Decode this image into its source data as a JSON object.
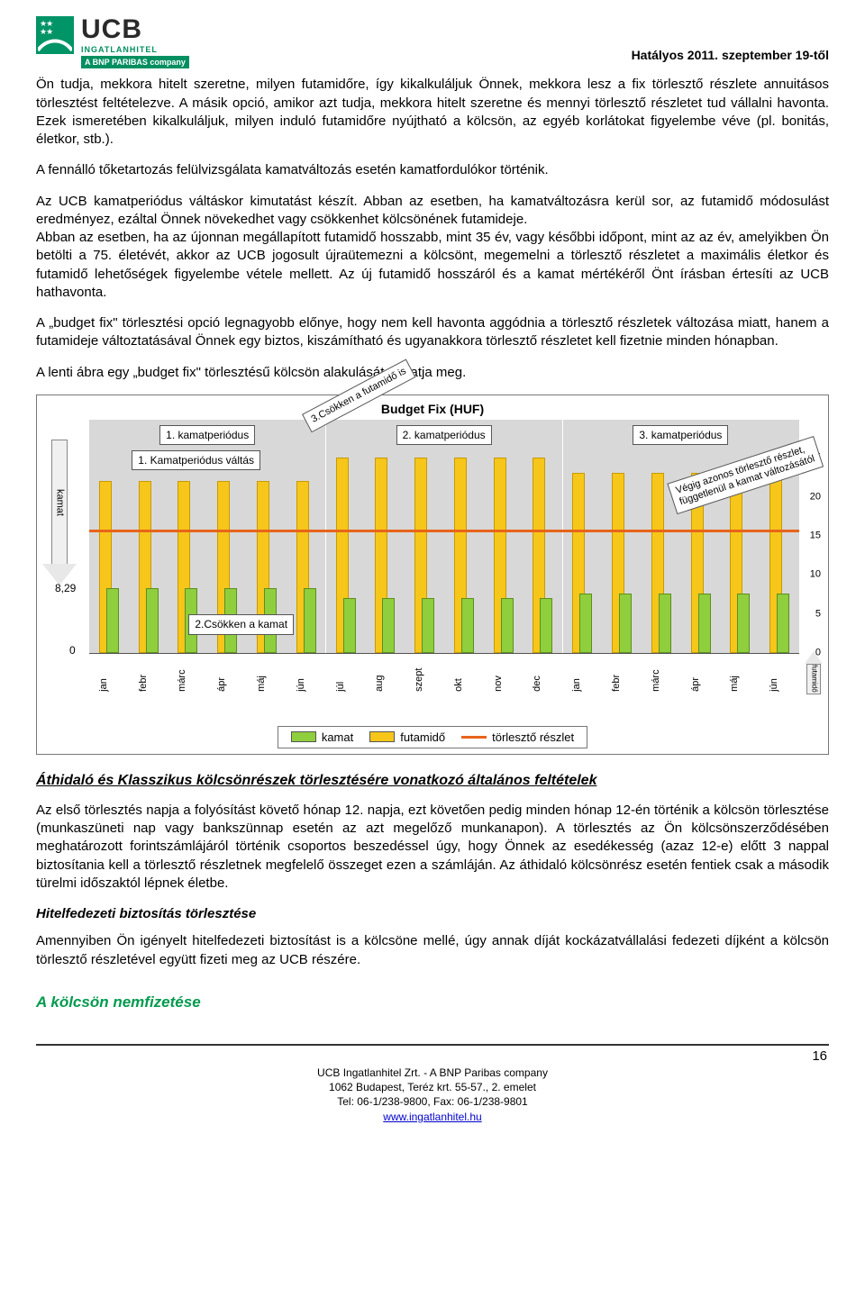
{
  "header": {
    "logo_name": "UCB",
    "logo_sub1": "INGATLANHITEL",
    "logo_sub2": "A BNP PARIBAS company",
    "effective": "Hatályos 2011. szeptember 19-től"
  },
  "paragraphs": {
    "p1": "Ön tudja, mekkora hitelt szeretne, milyen futamidőre, így kikalkuláljuk Önnek, mekkora lesz a fix törlesztő részlete annuitásos törlesztést feltételezve. A másik opció, amikor azt tudja, mekkora hitelt szeretne és mennyi törlesztő részletet tud vállalni havonta. Ezek ismeretében kikalkuláljuk, milyen induló futamidőre nyújtható a kölcsön, az egyéb korlátokat figyelembe véve (pl. bonitás, életkor, stb.).",
    "p2": "A fennálló tőketartozás felülvizsgálata kamatváltozás esetén kamatfordulókor történik.",
    "p3": "Az UCB kamatperiódus váltáskor kimutatást készít. Abban az esetben, ha kamatváltozásra kerül sor, az futamidő módosulást eredményez, ezáltal Önnek növekedhet vagy csökkenhet kölcsönének futamideje.",
    "p3b": "Abban az esetben, ha az újonnan megállapított futamidő hosszabb, mint 35 év, vagy későbbi időpont, mint az az év, amelyikben Ön betölti a 75. életévét, akkor az UCB jogosult újraütemezni a kölcsönt, megemelni a törlesztő részletet a maximális életkor és futamidő lehetőségek figyelembe vétele mellett. Az új futamidő hosszáról és a kamat mértékéről Önt írásban értesíti az UCB hathavonta.",
    "p4": "A „budget fix\" törlesztési opció legnagyobb előnye, hogy nem kell havonta aggódnia a törlesztő részletek változása miatt, hanem a futamideje változtatásával Önnek egy biztos, kiszámítható és ugyanakkora törlesztő részletet kell fizetnie minden hónapban.",
    "p5": "A lenti ábra egy „budget fix\" törlesztésű kölcsön alakulását mutatja meg.",
    "p6": "Az első törlesztés napja a folyósítást követő hónap 12. napja, ezt követően pedig minden hónap 12-én történik a kölcsön törlesztése (munkaszüneti nap vagy bankszünnap esetén az azt megelőző munkanapon). A törlesztés az Ön kölcsönszerződésében meghatározott forintszámlájáról történik csoportos beszedéssel úgy, hogy Önnek az esedékesség (azaz 12-e) előtt 3 nappal biztosítania kell a törlesztő részletnek megfelelő összeget ezen a számláján. Az áthidaló kölcsönrész esetén fentiek csak a második türelmi időszaktól lépnek életbe.",
    "p7": "Amennyiben Ön igényelt hitelfedezeti biztosítást is a kölcsöne mellé, úgy annak díját kockázatvállalási fedezeti díjként a kölcsön törlesztő részletével együtt fizeti meg az UCB részére."
  },
  "headings": {
    "h1": "Áthidaló és Klasszikus kölcsönrészek törlesztésére vonatkozó általános feltételek",
    "h2": "Hitelfedezeti biztosítás törlesztése",
    "h3": "A kölcsön nemfizetése"
  },
  "chart": {
    "title": "Budget Fix (HUF)",
    "period_labels": [
      "1. kamatperiódus",
      "2. kamatperiódus",
      "3. kamatperiódus"
    ],
    "annot_period_change": "1. Kamatperiódus váltás",
    "annot_kamat_down": "2.Csökken a kamat",
    "annot_diag_left": "3.Csökken a futamidő is",
    "annot_diag_right": "Végig azonos törlesztő részlet, függetlenül a kamat változásától",
    "left_arrow_label": "kamat",
    "right_arrow_label": "futamidő",
    "left_value_label": "8,29",
    "left_zero_label": "0",
    "y_ticks": [
      0,
      5,
      10,
      15,
      20,
      25
    ],
    "y_max": 30,
    "redline_y": 15.5,
    "months": [
      "jan",
      "febr",
      "márc",
      "ápr",
      "máj",
      "jún",
      "júl",
      "aug",
      "szept",
      "okt",
      "nov",
      "dec",
      "jan",
      "febr",
      "márc",
      "ápr",
      "máj",
      "jún"
    ],
    "yellow_values": [
      22,
      22,
      22,
      22,
      22,
      22,
      25,
      25,
      25,
      25,
      25,
      25,
      23,
      23,
      23,
      23,
      23,
      23
    ],
    "green_values": [
      8.3,
      8.3,
      8.3,
      8.3,
      8.3,
      8.3,
      7,
      7,
      7,
      7,
      7,
      7,
      7.6,
      7.6,
      7.6,
      7.6,
      7.6,
      7.6
    ],
    "bands": [
      {
        "start_pct": 0,
        "width_pct": 33.3
      },
      {
        "start_pct": 33.3,
        "width_pct": 33.3
      },
      {
        "start_pct": 66.6,
        "width_pct": 33.4
      }
    ],
    "colors": {
      "yellow": "#f6c61a",
      "yellow_border": "#c99a00",
      "green": "#8fce3d",
      "green_border": "#5c8f1f",
      "red": "#e8641a",
      "band": "#d8d8d8"
    },
    "legend": {
      "kamat": "kamat",
      "futamido": "futamidő",
      "torleszto": "törlesztő részlet"
    }
  },
  "footer": {
    "page_number": "16",
    "line1": "UCB Ingatlanhitel Zrt. - A BNP Paribas company",
    "line2": "1062 Budapest, Teréz krt. 55-57., 2. emelet",
    "line3": "Tel: 06-1/238-9800, Fax: 06-1/238-9801",
    "link": "www.ingatlanhitel.hu"
  }
}
